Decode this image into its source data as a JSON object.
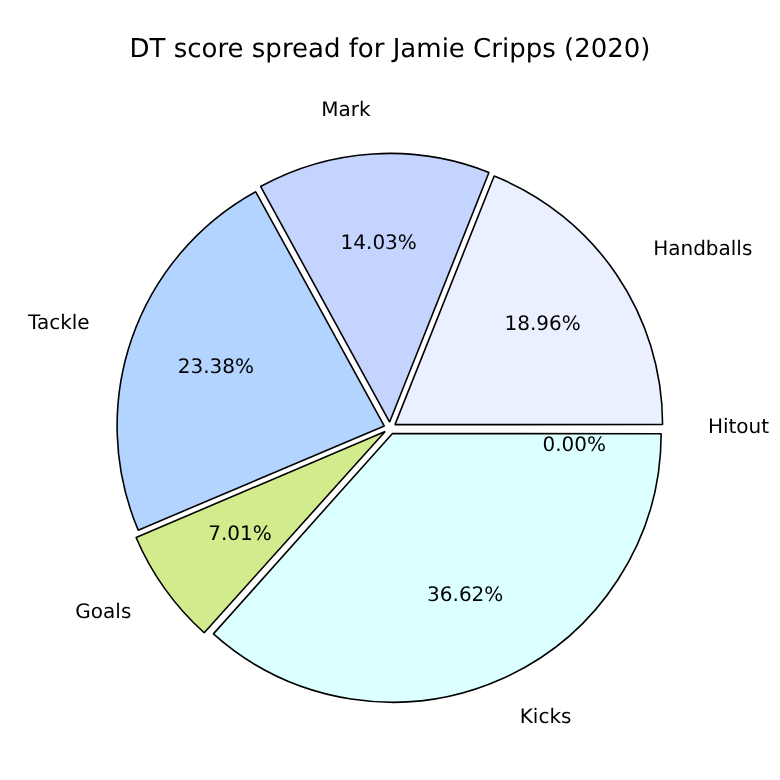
{
  "chart_data": {
    "type": "pie",
    "title": "DT score spread for Jamie Cripps (2020)",
    "categories": [
      "Hitout",
      "Kicks",
      "Goals",
      "Tackle",
      "Mark",
      "Handballs"
    ],
    "values": [
      0.0,
      36.62,
      7.01,
      23.38,
      14.03,
      18.96
    ],
    "value_labels": [
      "0.00%",
      "36.62%",
      "7.01%",
      "23.38%",
      "14.03%",
      "18.96%"
    ],
    "colors": [
      "#ffffff",
      "#dcffff",
      "#d2eb8c",
      "#b3d4ff",
      "#c4d4ff",
      "#eaf0ff"
    ],
    "legend": false
  }
}
